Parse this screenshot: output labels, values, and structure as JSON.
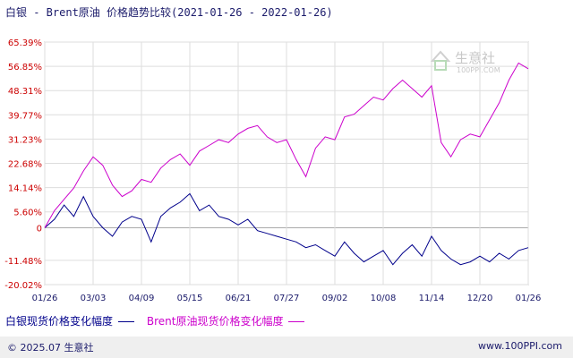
{
  "title": "白银 - Brent原油 价格趋势比较(2021-01-26 - 2022-01-26)",
  "chart_data": {
    "type": "line",
    "y_ticks": [
      "65.39%",
      "56.85%",
      "48.31%",
      "39.77%",
      "31.23%",
      "22.68%",
      "14.14%",
      "5.60%",
      "0",
      "-11.48%",
      "-20.02%"
    ],
    "y_values": [
      65.39,
      56.85,
      48.31,
      39.77,
      31.23,
      22.68,
      14.14,
      5.6,
      0,
      -11.48,
      -20.02
    ],
    "ylim": [
      -20.02,
      65.39
    ],
    "x_ticks": [
      "01/26",
      "03/03",
      "04/09",
      "05/15",
      "06/21",
      "07/27",
      "09/02",
      "10/08",
      "11/14",
      "12/20",
      "01/26"
    ],
    "grid": true,
    "series": [
      {
        "name": "白银现货价格变化幅度",
        "color": "#00008b",
        "x": [
          0,
          1,
          2,
          3,
          4,
          5,
          6,
          7,
          8,
          9,
          10,
          11,
          12,
          13,
          14,
          15,
          16,
          17,
          18,
          19,
          20,
          21,
          22,
          23,
          24,
          25,
          26,
          27,
          28,
          29,
          30,
          31,
          32,
          33,
          34,
          35,
          36,
          37,
          38,
          39,
          40,
          41,
          42,
          43,
          44,
          45,
          46,
          47,
          48,
          49,
          50
        ],
        "y": [
          0,
          3,
          8,
          4,
          11,
          4,
          0,
          -3,
          2,
          4,
          3,
          -5,
          4,
          7,
          9,
          12,
          6,
          8,
          4,
          3,
          1,
          3,
          -1,
          -2,
          -3,
          -4,
          -5,
          -7,
          -6,
          -8,
          -10,
          -5,
          -9,
          -12,
          -10,
          -8,
          -13,
          -9,
          -6,
          -10,
          -3,
          -8,
          -11,
          -13,
          -12,
          -10,
          -12,
          -9,
          -11,
          -8,
          -7
        ]
      },
      {
        "name": "Brent原油现货价格变化幅度",
        "color": "#cc00cc",
        "x": [
          0,
          1,
          2,
          3,
          4,
          5,
          6,
          7,
          8,
          9,
          10,
          11,
          12,
          13,
          14,
          15,
          16,
          17,
          18,
          19,
          20,
          21,
          22,
          23,
          24,
          25,
          26,
          27,
          28,
          29,
          30,
          31,
          32,
          33,
          34,
          35,
          36,
          37,
          38,
          39,
          40,
          41,
          42,
          43,
          44,
          45,
          46,
          47,
          48,
          49,
          50
        ],
        "y": [
          0,
          6,
          10,
          14,
          20,
          25,
          22,
          15,
          11,
          13,
          17,
          16,
          21,
          24,
          26,
          22,
          27,
          29,
          31,
          30,
          33,
          35,
          36,
          32,
          30,
          31,
          24,
          18,
          28,
          32,
          31,
          39,
          40,
          43,
          46,
          45,
          49,
          52,
          49,
          46,
          50,
          30,
          25,
          31,
          33,
          32,
          38,
          44,
          52,
          58,
          56
        ]
      }
    ]
  },
  "watermark": {
    "text": "生意社",
    "sub": "100PPI.COM"
  },
  "footer": {
    "left": "© 2025.07 生意社",
    "right": "www.100PPI.com"
  }
}
